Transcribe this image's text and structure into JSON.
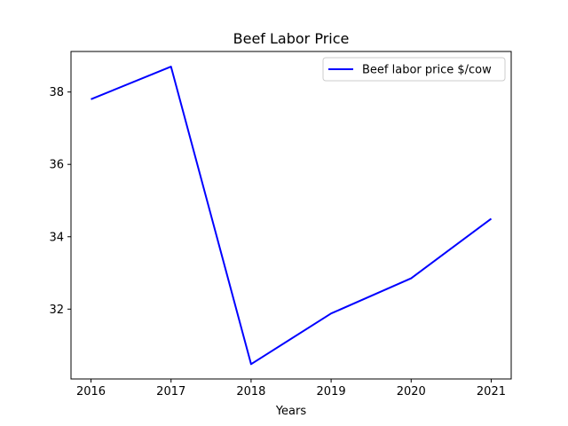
{
  "chart_data": {
    "type": "line",
    "title": "Beef Labor Price",
    "xlabel": "Years",
    "ylabel": "",
    "x": [
      2016,
      2017,
      2018,
      2019,
      2020,
      2021
    ],
    "series": [
      {
        "name": "Beef labor price $/cow",
        "color": "#0000ff",
        "values": [
          37.8,
          38.7,
          30.48,
          31.88,
          32.85,
          34.5
        ]
      }
    ],
    "xlim": [
      2015.75,
      2021.25
    ],
    "ylim": [
      30.07,
      39.12
    ],
    "xticks": [
      "2016",
      "2017",
      "2018",
      "2019",
      "2020",
      "2021"
    ],
    "yticks": [
      "32",
      "34",
      "36",
      "38"
    ],
    "legend_position": "top-right",
    "grid": false
  }
}
